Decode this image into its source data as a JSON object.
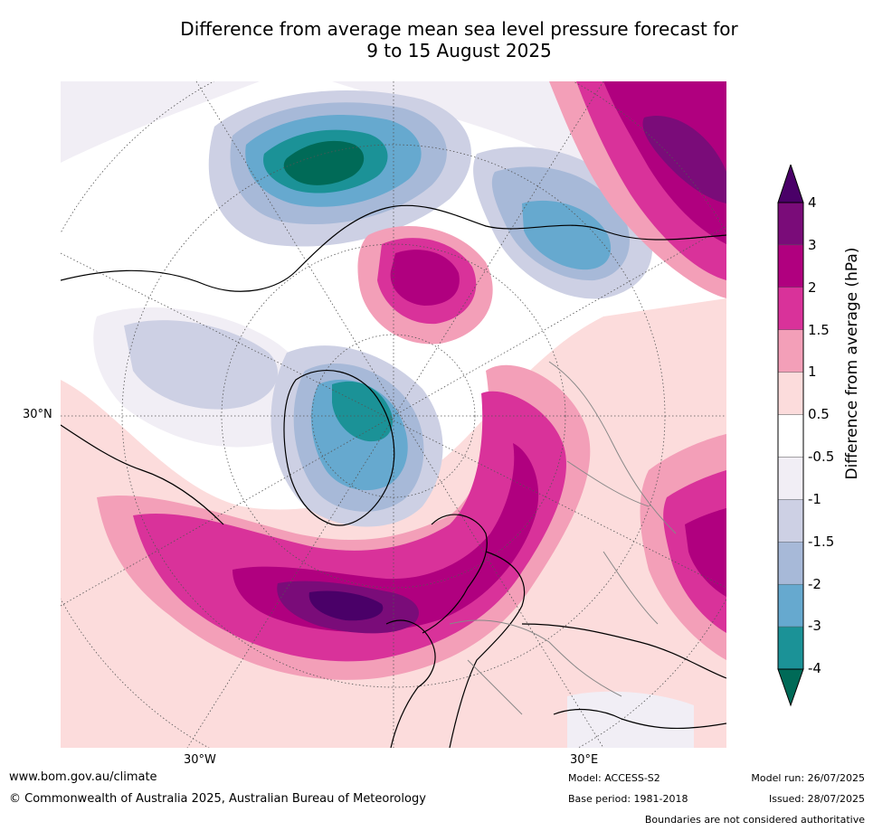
{
  "title_line1": "Difference from average mean sea level pressure forecast for",
  "title_line2": "9 to 15 August 2025",
  "map": {
    "lat_label": "30°N",
    "lon_labels": [
      "30°W",
      "30°E"
    ]
  },
  "colorbar": {
    "title": "Difference from average (hPa)",
    "ticks": [
      "4",
      "3",
      "2",
      "1.5",
      "1",
      "0.5",
      "-0.5",
      "-1",
      "-1.5",
      "-2",
      "-3",
      "-4"
    ],
    "colors": [
      "#4a0068",
      "#7a0c79",
      "#b0007f",
      "#d9329a",
      "#f39fb8",
      "#fcdcdc",
      "#ffffff",
      "#f1eef5",
      "#cdd0e4",
      "#a7b9d8",
      "#66a9cf",
      "#1b9297",
      "#006a57"
    ]
  },
  "footer": {
    "url": "www.bom.gov.au/climate",
    "copyright": "© Commonwealth of Australia 2025, Australian Bureau of Meteorology",
    "model": "Model: ACCESS-S2",
    "base_period": "Base period: 1981-2018",
    "model_run": "Model run: 26/07/2025",
    "issued": "Issued: 28/07/2025",
    "disclaimer": "Boundaries are not considered authoritative"
  }
}
